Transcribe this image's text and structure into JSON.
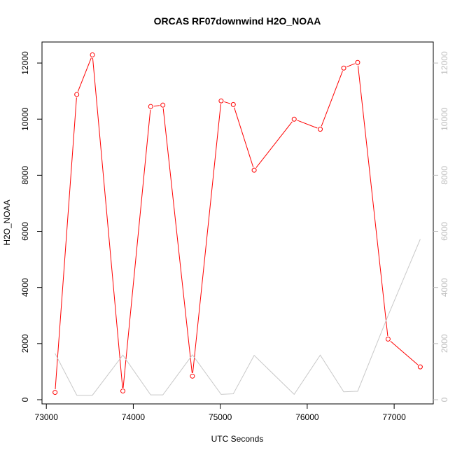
{
  "chart_data": {
    "type": "line",
    "title": "ORCAS RF07downwind H2O_NOAA",
    "xlabel": "UTC Seconds",
    "ylabel": "H2O_NOAA",
    "xlim": [
      72950,
      77450
    ],
    "ylim": [
      -150,
      12750
    ],
    "y2lim": [
      -150,
      12750
    ],
    "x_ticks": [
      73000,
      74000,
      75000,
      76000,
      77000
    ],
    "y_ticks": [
      0,
      2000,
      4000,
      6000,
      8000,
      10000,
      12000
    ],
    "y2_ticks": [
      0,
      2000,
      4000,
      6000,
      8000,
      10000,
      12000
    ],
    "grid": false,
    "series": [
      {
        "axis": "left",
        "color": "#ff0000",
        "markers": "open-circle",
        "x": [
          73100,
          73350,
          73530,
          73880,
          74200,
          74340,
          74680,
          75010,
          75150,
          75390,
          75850,
          76150,
          76420,
          76580,
          76930,
          77300
        ],
        "y": [
          260,
          10880,
          12290,
          310,
          10450,
          10500,
          840,
          10650,
          10520,
          8180,
          10000,
          9640,
          11820,
          12020,
          2160,
          1170
        ]
      },
      {
        "axis": "right",
        "color": "#c8c8c8",
        "markers": "none",
        "x": [
          73100,
          73350,
          73530,
          73880,
          74200,
          74340,
          74680,
          75010,
          75150,
          75390,
          75850,
          76150,
          76420,
          76580,
          76930,
          77300
        ],
        "y": [
          1650,
          160,
          160,
          1590,
          170,
          170,
          1600,
          190,
          210,
          1580,
          190,
          1590,
          280,
          300,
          3000,
          5720
        ]
      }
    ]
  }
}
